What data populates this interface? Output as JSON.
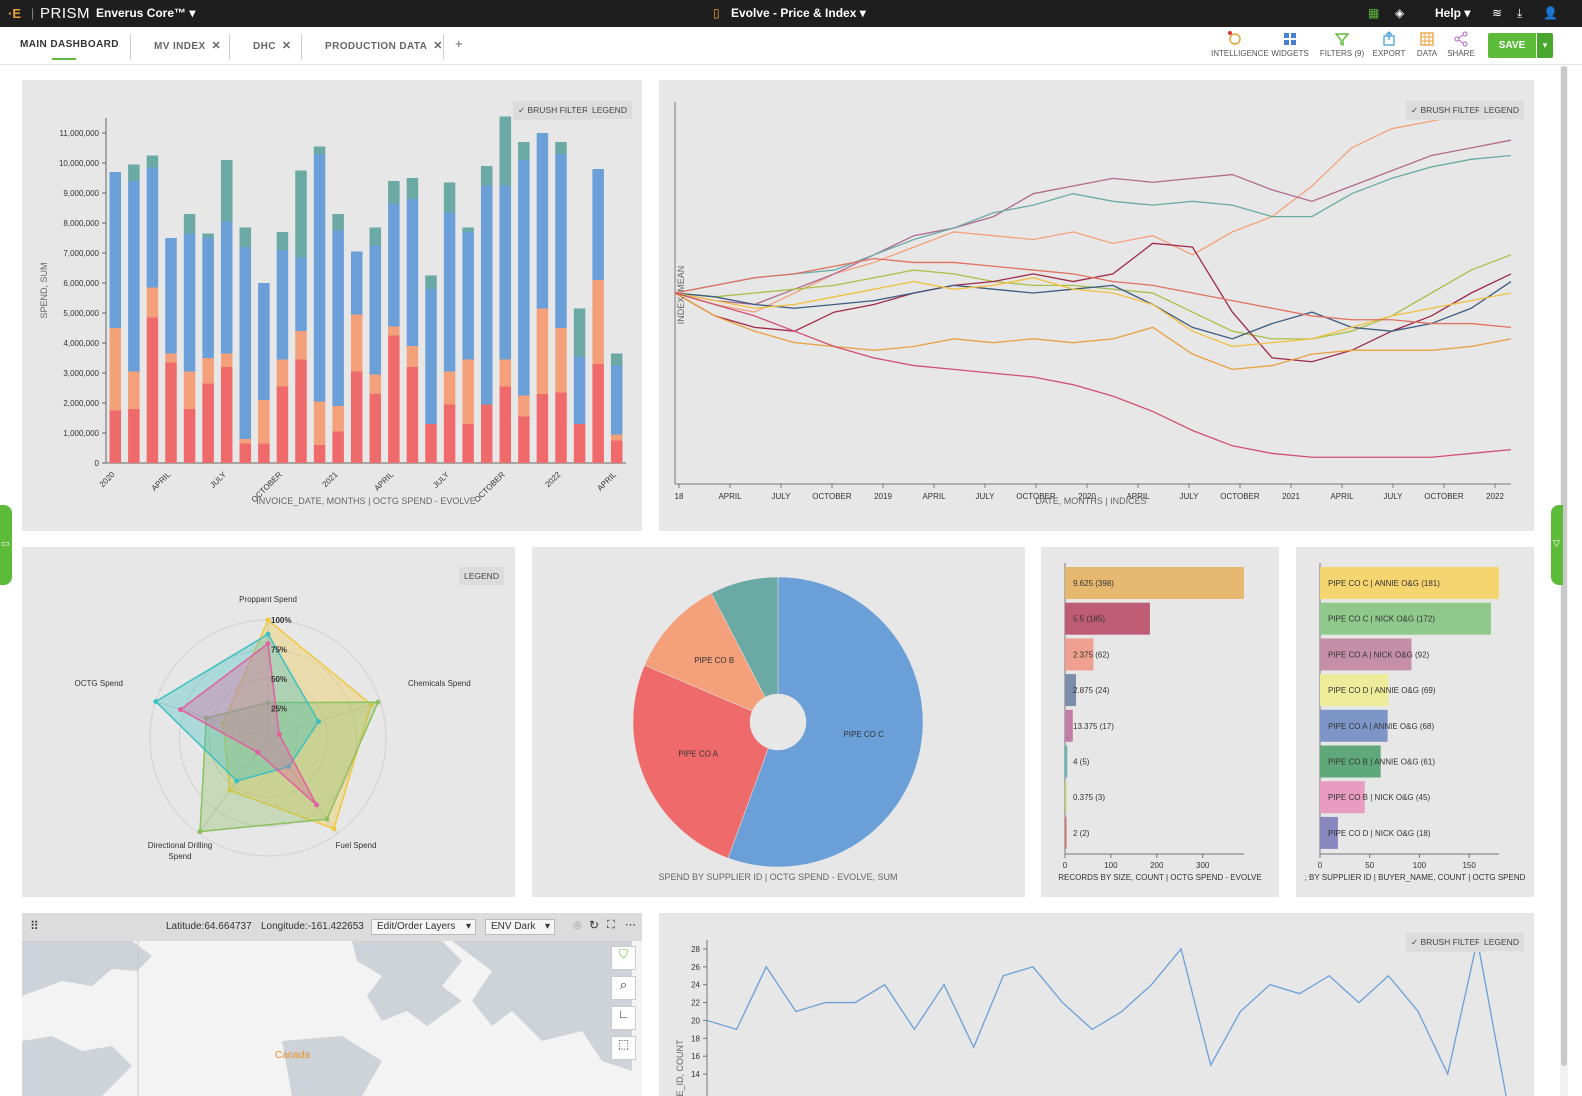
{
  "topbar": {
    "product_name": "PRISM",
    "workspace": "Enverus Core™",
    "document_title": "Evolve - Price & Index",
    "help_label": "Help"
  },
  "tabs": [
    {
      "label": "MAIN DASHBOARD",
      "active": true
    },
    {
      "label": "MV INDEX"
    },
    {
      "label": "DHC"
    },
    {
      "label": "PRODUCTION DATA"
    }
  ],
  "toolbar": {
    "intelligence": "INTELLIGENCE",
    "widgets": "WIDGETS",
    "filters": "FILTERS (9)",
    "export": "EXPORT",
    "data": "DATA",
    "share": "SHARE",
    "save": "SAVE"
  },
  "panel_buttons": {
    "brush_filter": "BRUSH FILTER",
    "legend": "LEGEND"
  },
  "colors": {
    "accent": "#5dbb3a",
    "red": "#ef6b6b",
    "orange": "#f4a07a",
    "blue": "#6a9fd8",
    "teal": "#6aa9a4"
  },
  "chart_data": [
    {
      "type": "bar",
      "stacked": true,
      "xlabel": "INVOICE_DATE, MONTHS | OCTG SPEND - EVOLVE",
      "ylabel": "SPEND, SUM",
      "ylim": [
        0,
        11500000
      ],
      "yticks": [
        "0",
        "1,000,000",
        "2,000,000",
        "3,000,000",
        "4,000,000",
        "5,000,000",
        "6,000,000",
        "7,000,000",
        "8,000,000",
        "9,000,000",
        "10,000,000",
        "11,000,000"
      ],
      "xticks": [
        "2020",
        "APRIL",
        "JULY",
        "OCTOBER",
        "2021",
        "APRIL",
        "JULY",
        "OCTOBER",
        "2022",
        "APRIL"
      ],
      "xtick_index": [
        0,
        3,
        6,
        9,
        12,
        15,
        18,
        21,
        24,
        27
      ],
      "series": [
        {
          "values": [
            1.75,
            1.8,
            4.85,
            3.35,
            1.8,
            2.65,
            3.2,
            0.65,
            0.65,
            2.55,
            3.45,
            0.6,
            1.05,
            3.05,
            2.3,
            4.25,
            3.2,
            1.3,
            1.95,
            1.3,
            1.95,
            2.55,
            1.55,
            2.3,
            2.35,
            1.3,
            3.3,
            0.75
          ]
        },
        {
          "values": [
            2.75,
            1.25,
            1.0,
            0.3,
            1.25,
            0.85,
            0.45,
            0.15,
            1.45,
            0.9,
            0.95,
            1.45,
            0.85,
            1.9,
            0.65,
            0.3,
            0.7,
            0.0,
            1.1,
            2.15,
            0.0,
            0.9,
            0.7,
            2.85,
            2.15,
            0.0,
            2.8,
            0.2
          ]
        },
        {
          "values": [
            5.2,
            6.35,
            4.0,
            3.85,
            4.6,
            4.0,
            4.4,
            6.4,
            3.9,
            3.65,
            2.45,
            8.25,
            5.85,
            2.1,
            4.3,
            4.1,
            4.9,
            4.5,
            5.3,
            4.25,
            7.3,
            5.8,
            7.85,
            5.85,
            5.8,
            2.25,
            3.7,
            2.3
          ]
        },
        {
          "values": [
            0.0,
            0.55,
            0.4,
            0.0,
            0.65,
            0.15,
            2.05,
            0.65,
            0.0,
            0.6,
            2.9,
            0.25,
            0.55,
            0.0,
            0.6,
            0.75,
            0.7,
            0.45,
            1.0,
            0.15,
            0.65,
            2.3,
            0.6,
            0.0,
            0.4,
            1.6,
            0.0,
            0.4
          ]
        }
      ]
    },
    {
      "type": "line",
      "xlabel": "DATE, MONTHS | INDICES",
      "ylabel": "INDEX, MEAN",
      "xticks": [
        "18",
        "APRIL",
        "JULY",
        "OCTOBER",
        "2019",
        "APRIL",
        "JULY",
        "OCTOBER",
        "2020",
        "APRIL",
        "JULY",
        "OCTOBER",
        "2021",
        "APRIL",
        "JULY",
        "OCTOBER",
        "2022"
      ],
      "ylim": [
        0,
        100
      ],
      "series": [
        {
          "color": "#f4a07a",
          "values": [
            50,
            47,
            45,
            50,
            55,
            58,
            62,
            66,
            65,
            64,
            66,
            63,
            65,
            60,
            66,
            70,
            78,
            88,
            93,
            95,
            97,
            98
          ]
        },
        {
          "color": "#b06a90",
          "values": [
            50,
            48,
            47,
            51,
            55,
            60,
            65,
            67,
            70,
            76,
            78,
            80,
            79,
            80,
            81,
            77,
            74,
            78,
            82,
            86,
            88,
            90
          ]
        },
        {
          "color": "#6aaba8",
          "values": [
            50,
            52,
            54,
            55,
            56,
            60,
            64,
            67,
            71,
            73,
            76,
            74,
            73,
            74,
            73,
            70,
            70,
            76,
            80,
            83,
            85,
            86
          ]
        },
        {
          "color": "#a8c04a",
          "values": [
            50,
            49,
            50,
            51,
            52,
            54,
            56,
            55,
            53,
            52,
            52,
            51,
            50,
            45,
            40,
            38,
            38,
            40,
            44,
            50,
            56,
            60
          ]
        },
        {
          "color": "#9e2a4a",
          "values": [
            50,
            44,
            41,
            40,
            45,
            47,
            50,
            52,
            53,
            55,
            53,
            55,
            63,
            62,
            45,
            33,
            32,
            35,
            40,
            44,
            50,
            55
          ]
        },
        {
          "color": "#3d5a80",
          "values": [
            50,
            49,
            47,
            46,
            47,
            48,
            50,
            52,
            51,
            50,
            51,
            52,
            47,
            41,
            38,
            42,
            45,
            41,
            40,
            42,
            46,
            53
          ]
        },
        {
          "color": "#f0c040",
          "values": [
            50,
            48,
            46,
            47,
            49,
            51,
            53,
            51,
            52,
            54,
            51,
            50,
            47,
            40,
            36,
            37,
            38,
            41,
            44,
            46,
            48,
            50
          ]
        },
        {
          "color": "#e07060",
          "values": [
            50,
            52,
            54,
            55,
            57,
            59,
            58,
            58,
            57,
            56,
            55,
            53,
            52,
            50,
            48,
            46,
            44,
            43,
            43,
            42,
            42,
            41
          ]
        },
        {
          "color": "#e8a040",
          "values": [
            50,
            44,
            40,
            37,
            36,
            35,
            36,
            38,
            37,
            38,
            37,
            38,
            41,
            34,
            30,
            31,
            34,
            35,
            35,
            35,
            36,
            38
          ]
        },
        {
          "color": "#d05070",
          "values": [
            50,
            47,
            44,
            40,
            36,
            33,
            31,
            30,
            29,
            28,
            26,
            23,
            19,
            14,
            10,
            8,
            7,
            7,
            7,
            7,
            8,
            9
          ]
        }
      ]
    },
    {
      "type": "radar",
      "axes": [
        "Proppant Spend",
        "Chemicals Spend",
        "Fuel Spend",
        "Directional Drilling Spend",
        "OCTG Spend"
      ],
      "rticks": [
        "25%",
        "50%",
        "75%",
        "100%"
      ],
      "series": [
        {
          "color": "#f0c840",
          "values": [
            1.0,
            0.92,
            0.95,
            0.55,
            0.4
          ]
        },
        {
          "color": "#8cc060",
          "values": [
            0.3,
            0.98,
            0.85,
            0.98,
            0.55
          ]
        },
        {
          "color": "#3ec0c0",
          "values": [
            0.88,
            0.45,
            0.3,
            0.45,
            1.0
          ]
        },
        {
          "color": "#e060a0",
          "values": [
            0.8,
            0.1,
            0.7,
            0.15,
            0.78
          ]
        }
      ]
    },
    {
      "type": "pie",
      "donut": true,
      "xlabel": "SPEND BY SUPPLIER ID | OCTG SPEND - EVOLVE, SUM",
      "slices": [
        {
          "label": "PIPE CO C",
          "value": 55.6,
          "color": "#6a9fd8"
        },
        {
          "label": "PIPE CO A",
          "value": 25.8,
          "color": "#ef6b6b"
        },
        {
          "label": "PIPE CO B",
          "value": 11.0,
          "color": "#f4a07a"
        },
        {
          "label": "",
          "value": 7.6,
          "color": "#6aa9a4"
        }
      ]
    },
    {
      "type": "bar",
      "orientation": "horizontal",
      "xlabel": "RECORDS BY SIZE, COUNT | OCTG SPEND - EVOLVE",
      "xlim": [
        0,
        390
      ],
      "xticks": [
        "0",
        "100",
        "200",
        "300"
      ],
      "bars": [
        {
          "label": "9.625 (398)",
          "value": 398,
          "color": "#e6b870"
        },
        {
          "label": "5.5 (185)",
          "value": 185,
          "color": "#bd5c74"
        },
        {
          "label": "2.375 (62)",
          "value": 62,
          "color": "#f0a090"
        },
        {
          "label": "2.875 (24)",
          "value": 24,
          "color": "#7b8daa"
        },
        {
          "label": "13.375 (17)",
          "value": 17,
          "color": "#c47ea6"
        },
        {
          "label": "4 (5)",
          "value": 5,
          "color": "#62b8b0"
        },
        {
          "label": "0.375 (3)",
          "value": 3,
          "color": "#c8d46c"
        },
        {
          "label": "2 (2)",
          "value": 2,
          "color": "#d07070"
        }
      ]
    },
    {
      "type": "bar",
      "orientation": "horizontal",
      "xlabel": "; BY SUPPLIER ID | BUYER_NAME, COUNT | OCTG SPEND",
      "xlim": [
        0,
        180
      ],
      "xticks": [
        "0",
        "50",
        "100",
        "150"
      ],
      "bars": [
        {
          "label": "PIPE CO C | ANNIE O&G (181)",
          "value": 181,
          "color": "#f5d570"
        },
        {
          "label": "PIPE CO C | NICK O&G (172)",
          "value": 172,
          "color": "#8fc98c"
        },
        {
          "label": "PIPE CO A | NICK O&G (92)",
          "value": 92,
          "color": "#c68fa8"
        },
        {
          "label": "PIPE CO D | ANNIE O&G (69)",
          "value": 69,
          "color": "#ecec9a"
        },
        {
          "label": "PIPE CO A | ANNIE O&G (68)",
          "value": 68,
          "color": "#7e95c8"
        },
        {
          "label": "PIPE CO B | ANNIE O&G (61)",
          "value": 61,
          "color": "#5ea87a"
        },
        {
          "label": "PIPE CO B | NICK O&G (45)",
          "value": 45,
          "color": "#e89cc0"
        },
        {
          "label": "PIPE CO D | NICK O&G (18)",
          "value": 18,
          "color": "#8a86c0"
        }
      ]
    },
    {
      "type": "line",
      "ylabel": "E_ID, COUNT",
      "yticks": [
        "14",
        "16",
        "18",
        "20",
        "22",
        "24",
        "26",
        "28"
      ],
      "ylim": [
        13,
        29
      ],
      "series": [
        {
          "color": "#6a9fd8",
          "values": [
            20,
            19,
            26,
            21,
            22,
            22,
            24,
            19,
            24,
            17,
            25,
            26,
            22,
            19,
            21,
            24,
            28,
            15,
            21,
            24,
            23,
            25,
            22,
            25,
            21,
            14,
            29,
            11
          ]
        }
      ]
    }
  ],
  "map": {
    "latitude": "Latitude:64.664737",
    "longitude": "Longitude:-161.422653",
    "layers_select": "Edit/Order Layers",
    "basemap_select": "ENV Dark",
    "place_label": "Canada"
  }
}
